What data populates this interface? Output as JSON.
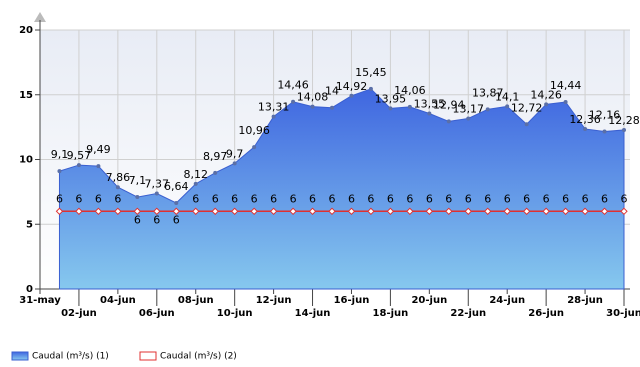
{
  "chart_data": {
    "type": "area",
    "categories": [
      "31-may",
      null,
      "02-jun",
      null,
      "04-jun",
      null,
      "06-jun",
      null,
      "08-jun",
      null,
      "10-jun",
      null,
      "12-jun",
      null,
      "14-jun",
      null,
      "16-jun",
      null,
      "18-jun",
      null,
      "20-jun",
      null,
      "22-jun",
      null,
      "24-jun",
      null,
      "26-jun",
      null,
      "28-jun",
      null,
      "30-jun"
    ],
    "series": [
      {
        "name": "Caudal (m³/s) (1)",
        "color": "#4169e1",
        "values": [
          null,
          9.1,
          9.57,
          9.49,
          7.86,
          7.1,
          7.37,
          6.64,
          8.12,
          8.97,
          9.7,
          10.96,
          13.31,
          14.46,
          14.08,
          14,
          14.92,
          15.45,
          13.95,
          14.06,
          13.55,
          12.94,
          13.17,
          13.87,
          14.1,
          12.72,
          14.26,
          14.44,
          12.36,
          12.16,
          12.28
        ],
        "value_labels": [
          null,
          "9,1",
          "9,57",
          "9,49",
          "7,86",
          "7,1",
          "7,37",
          "6,64",
          "8,12",
          "8,97",
          "9,7",
          "10,96",
          "13,31",
          "14,46",
          "14,08",
          "14",
          "14,92",
          "15,45",
          "13,95",
          "14,06",
          "13,55",
          "12,94",
          "13,17",
          "13,87",
          "14,1",
          "12,72",
          "14,26",
          "14,44",
          "12,36",
          "12,16",
          "12,28"
        ]
      },
      {
        "name": "Caudal (m³/s) (2)",
        "color": "#e03030",
        "values": [
          null,
          6,
          6,
          6,
          6,
          6,
          6,
          6,
          6,
          6,
          6,
          6,
          6,
          6,
          6,
          6,
          6,
          6,
          6,
          6,
          6,
          6,
          6,
          6,
          6,
          6,
          6,
          6,
          6,
          6,
          6
        ]
      }
    ],
    "ylim": [
      0,
      20
    ],
    "yticks": [
      0,
      5,
      10,
      15,
      20
    ],
    "grid": true
  }
}
